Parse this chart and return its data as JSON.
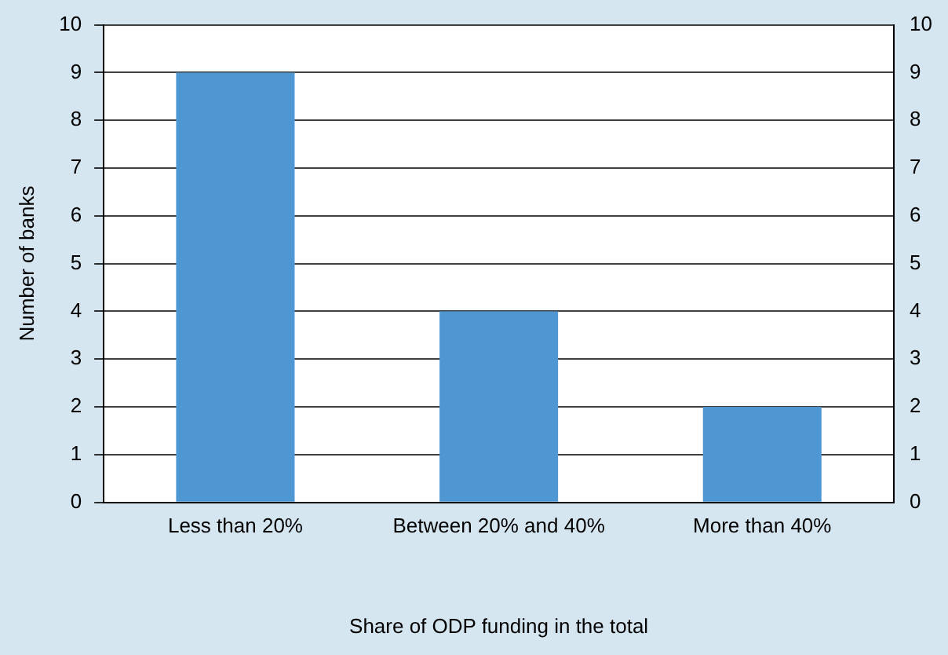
{
  "chart_data": {
    "type": "bar",
    "xlabel": "Share of ODP funding in the total",
    "ylabel": "Number of banks",
    "categories": [
      "Less than 20%",
      "Between 20% and 40%",
      "More than 40%"
    ],
    "values": [
      9,
      4,
      2
    ],
    "color": "#4f97d3",
    "ylim": [
      0,
      10
    ],
    "yticks": [
      0,
      1,
      2,
      3,
      4,
      5,
      6,
      7,
      8,
      9,
      10
    ],
    "y2lim": [
      0,
      10
    ],
    "y2ticks": [
      0,
      1,
      2,
      3,
      4,
      5,
      6,
      7,
      8,
      9,
      10
    ],
    "grid": "y"
  }
}
